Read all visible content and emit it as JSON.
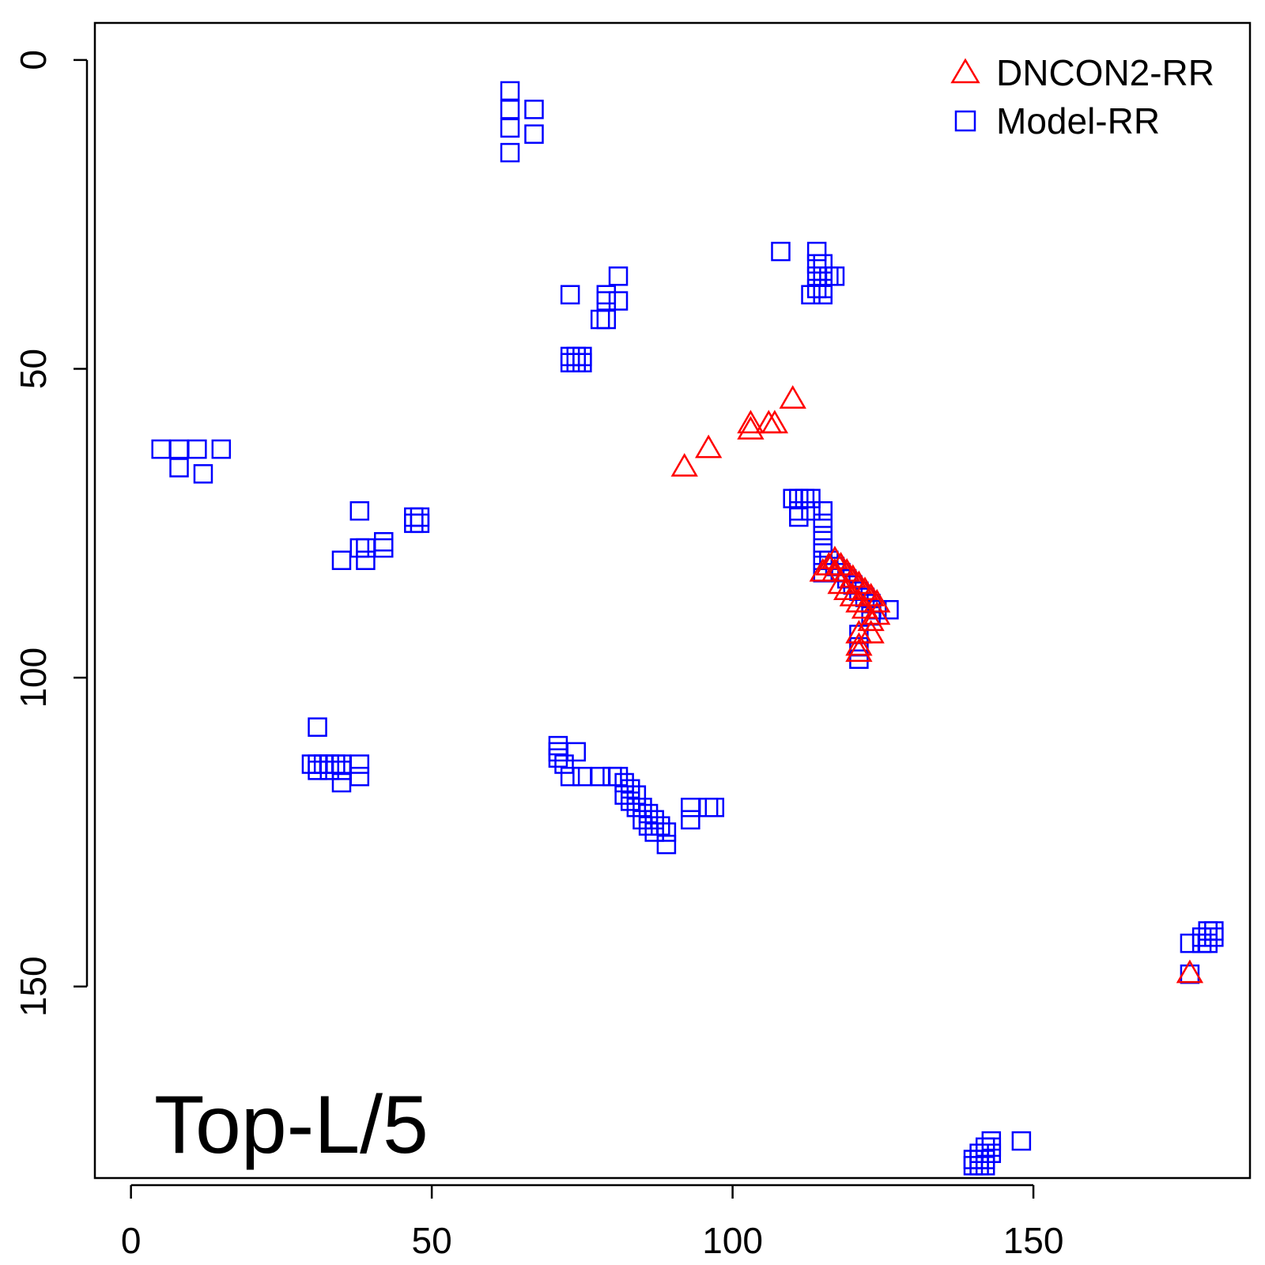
{
  "chart_data": {
    "type": "scatter",
    "title": "",
    "xlabel": "",
    "ylabel": "",
    "annotation": "Top-L/5",
    "xlim": [
      -6,
      186
    ],
    "ylim": [
      181,
      -6
    ],
    "y_axis_reversed": true,
    "x_ticks": [
      0,
      50,
      100,
      150
    ],
    "y_ticks": [
      0,
      50,
      100,
      150
    ],
    "x_tick_labels": [
      "0",
      "50",
      "100",
      "150"
    ],
    "y_tick_labels": [
      "0",
      "50",
      "100",
      "150"
    ],
    "legend_position": "top-right",
    "grid": false,
    "series": [
      {
        "name": "DNCON2-RR",
        "marker": "triangle",
        "color": "#ff0000",
        "points": [
          [
            110,
            55
          ],
          [
            103,
            59
          ],
          [
            103,
            60
          ],
          [
            106,
            59
          ],
          [
            107,
            59
          ],
          [
            96,
            63
          ],
          [
            92,
            66
          ],
          [
            117,
            81
          ],
          [
            116,
            82
          ],
          [
            118,
            82
          ],
          [
            115,
            83
          ],
          [
            117,
            83
          ],
          [
            119,
            83
          ],
          [
            120,
            84
          ],
          [
            118,
            85
          ],
          [
            121,
            85
          ],
          [
            119,
            86
          ],
          [
            122,
            86
          ],
          [
            120,
            87
          ],
          [
            123,
            87
          ],
          [
            121,
            88
          ],
          [
            124,
            88
          ],
          [
            122,
            89
          ],
          [
            124,
            90
          ],
          [
            123,
            91
          ],
          [
            121,
            93
          ],
          [
            123,
            93
          ],
          [
            121,
            95
          ],
          [
            121,
            96
          ],
          [
            176,
            148
          ]
        ]
      },
      {
        "name": "Model-RR",
        "marker": "square",
        "color": "#0000ff",
        "points": [
          [
            63,
            5
          ],
          [
            63,
            8
          ],
          [
            67,
            8
          ],
          [
            63,
            11
          ],
          [
            67,
            12
          ],
          [
            63,
            15
          ],
          [
            108,
            31
          ],
          [
            114,
            31
          ],
          [
            114,
            33
          ],
          [
            115,
            33
          ],
          [
            114,
            35
          ],
          [
            115,
            35
          ],
          [
            117,
            35
          ],
          [
            114,
            37
          ],
          [
            115,
            37
          ],
          [
            116,
            35
          ],
          [
            113,
            38
          ],
          [
            115,
            38
          ],
          [
            81,
            35
          ],
          [
            73,
            38
          ],
          [
            79,
            38
          ],
          [
            81,
            39
          ],
          [
            79,
            39
          ],
          [
            78,
            42
          ],
          [
            79,
            42
          ],
          [
            73,
            48
          ],
          [
            74,
            48
          ],
          [
            75,
            48
          ],
          [
            73,
            49
          ],
          [
            74,
            49
          ],
          [
            75,
            49
          ],
          [
            5,
            63
          ],
          [
            8,
            63
          ],
          [
            11,
            63
          ],
          [
            15,
            63
          ],
          [
            8,
            66
          ],
          [
            12,
            67
          ],
          [
            38,
            73
          ],
          [
            47,
            74
          ],
          [
            48,
            74
          ],
          [
            47,
            75
          ],
          [
            48,
            75
          ],
          [
            38,
            79
          ],
          [
            39,
            79
          ],
          [
            42,
            78
          ],
          [
            42,
            79
          ],
          [
            35,
            81
          ],
          [
            39,
            81
          ],
          [
            110,
            71
          ],
          [
            111,
            71
          ],
          [
            112,
            71
          ],
          [
            113,
            71
          ],
          [
            111,
            73
          ],
          [
            113,
            73
          ],
          [
            115,
            73
          ],
          [
            111,
            74
          ],
          [
            115,
            75
          ],
          [
            115,
            77
          ],
          [
            115,
            79
          ],
          [
            115,
            81
          ],
          [
            116,
            81
          ],
          [
            117,
            82
          ],
          [
            115,
            83
          ],
          [
            118,
            83
          ],
          [
            119,
            84
          ],
          [
            120,
            85
          ],
          [
            121,
            86
          ],
          [
            122,
            87
          ],
          [
            123,
            88
          ],
          [
            124,
            89
          ],
          [
            126,
            89
          ],
          [
            123,
            90
          ],
          [
            121,
            93
          ],
          [
            121,
            95
          ],
          [
            121,
            97
          ],
          [
            31,
            108
          ],
          [
            30,
            114
          ],
          [
            31,
            114
          ],
          [
            32,
            114
          ],
          [
            33,
            114
          ],
          [
            34,
            114
          ],
          [
            35,
            114
          ],
          [
            38,
            114
          ],
          [
            31,
            115
          ],
          [
            33,
            115
          ],
          [
            35,
            115
          ],
          [
            38,
            116
          ],
          [
            35,
            117
          ],
          [
            71,
            111
          ],
          [
            71,
            112
          ],
          [
            74,
            112
          ],
          [
            71,
            113
          ],
          [
            72,
            114
          ],
          [
            73,
            116
          ],
          [
            75,
            116
          ],
          [
            78,
            116
          ],
          [
            80,
            116
          ],
          [
            81,
            116
          ],
          [
            82,
            117
          ],
          [
            83,
            118
          ],
          [
            82,
            119
          ],
          [
            84,
            119
          ],
          [
            83,
            120
          ],
          [
            85,
            121
          ],
          [
            84,
            121
          ],
          [
            86,
            122
          ],
          [
            85,
            123
          ],
          [
            87,
            123
          ],
          [
            86,
            124
          ],
          [
            88,
            124
          ],
          [
            87,
            125
          ],
          [
            89,
            125
          ],
          [
            89,
            127
          ],
          [
            93,
            121
          ],
          [
            96,
            121
          ],
          [
            97,
            121
          ],
          [
            93,
            123
          ],
          [
            179,
            141
          ],
          [
            180,
            141
          ],
          [
            178,
            142
          ],
          [
            179,
            142
          ],
          [
            180,
            142
          ],
          [
            176,
            143
          ],
          [
            178,
            143
          ],
          [
            179,
            143
          ],
          [
            176,
            148
          ],
          [
            143,
            175
          ],
          [
            142,
            176
          ],
          [
            143,
            176
          ],
          [
            141,
            177
          ],
          [
            142,
            177
          ],
          [
            143,
            177
          ],
          [
            140,
            178
          ],
          [
            141,
            178
          ],
          [
            142,
            178
          ],
          [
            140,
            179
          ],
          [
            141,
            179
          ],
          [
            142,
            179
          ],
          [
            148,
            175
          ]
        ]
      }
    ]
  }
}
